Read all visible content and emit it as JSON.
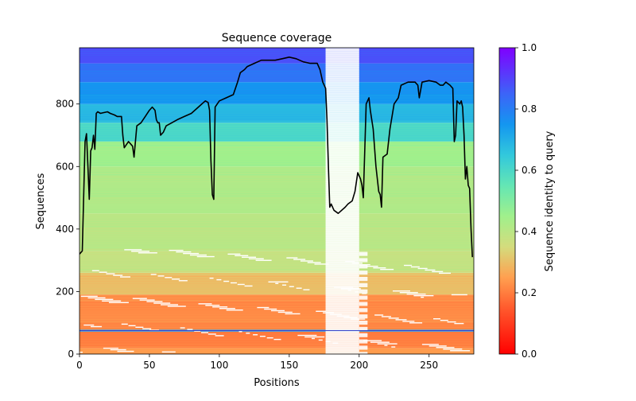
{
  "chart_data": {
    "type": "heatmap",
    "title": "Sequence coverage",
    "xlabel": "Positions",
    "ylabel": "Sequences",
    "xlim": [
      0,
      282
    ],
    "ylim": [
      0,
      980
    ],
    "xticks": [
      0,
      50,
      100,
      150,
      200,
      250
    ],
    "yticks": [
      0,
      200,
      400,
      600,
      800
    ],
    "colorbar": {
      "label": "Sequence identity to query",
      "range": [
        0,
        1
      ],
      "ticks": [
        "0.0",
        "0.2",
        "0.4",
        "0.6",
        "0.8",
        "1.0"
      ],
      "colormap": "rainbow_r"
    },
    "coverage_line": {
      "name": "coverage",
      "color": "#000000",
      "x": [
        0,
        2,
        4,
        5,
        6,
        7,
        8,
        9,
        10,
        11,
        12,
        13,
        15,
        20,
        22,
        25,
        27,
        30,
        31,
        32,
        35,
        37,
        38,
        39,
        41,
        44,
        47,
        50,
        52,
        54,
        55,
        56,
        57,
        58,
        60,
        62,
        66,
        70,
        75,
        80,
        85,
        90,
        92,
        93,
        94,
        95,
        96,
        97,
        100,
        105,
        110,
        113,
        115,
        118,
        120,
        125,
        130,
        135,
        140,
        145,
        150,
        155,
        160,
        165,
        170,
        172,
        174,
        175,
        176,
        177,
        178,
        179,
        180,
        182,
        185,
        190,
        192,
        195,
        197,
        199,
        201,
        202,
        203,
        205,
        207,
        208,
        210,
        212,
        214,
        215,
        216,
        217,
        220,
        222,
        225,
        228,
        230,
        235,
        240,
        242,
        243,
        245,
        250,
        255,
        258,
        260,
        262,
        265,
        267,
        268,
        269,
        270,
        272,
        273,
        274,
        275,
        276,
        277,
        278,
        279,
        280,
        281
      ],
      "y": [
        320,
        330,
        680,
        705,
        600,
        495,
        650,
        660,
        700,
        655,
        770,
        775,
        770,
        775,
        770,
        765,
        760,
        760,
        700,
        660,
        680,
        670,
        665,
        630,
        730,
        740,
        760,
        780,
        790,
        780,
        750,
        740,
        740,
        700,
        710,
        730,
        740,
        750,
        760,
        770,
        790,
        810,
        805,
        780,
        620,
        510,
        495,
        790,
        810,
        820,
        830,
        870,
        900,
        910,
        920,
        930,
        940,
        940,
        940,
        945,
        950,
        945,
        935,
        930,
        930,
        910,
        870,
        860,
        850,
        750,
        600,
        470,
        480,
        460,
        450,
        470,
        480,
        490,
        520,
        580,
        560,
        540,
        500,
        800,
        820,
        780,
        720,
        600,
        520,
        510,
        470,
        630,
        640,
        720,
        800,
        820,
        860,
        870,
        870,
        860,
        820,
        870,
        875,
        870,
        860,
        860,
        870,
        860,
        850,
        680,
        700,
        810,
        800,
        810,
        790,
        700,
        560,
        600,
        540,
        530,
        400,
        310
      ]
    },
    "identity_bands": [
      {
        "y": [
          0,
          20
        ],
        "identity": 0.25
      },
      {
        "y": [
          20,
          72
        ],
        "identity": 0.2
      },
      {
        "y": [
          72,
          78
        ],
        "identity": 0.75
      },
      {
        "y": [
          78,
          190
        ],
        "identity": 0.22
      },
      {
        "y": [
          190,
          260
        ],
        "identity": 0.3
      },
      {
        "y": [
          260,
          330
        ],
        "identity": 0.38
      },
      {
        "y": [
          330,
          450
        ],
        "identity": 0.4
      },
      {
        "y": [
          450,
          600
        ],
        "identity": 0.42
      },
      {
        "y": [
          600,
          680
        ],
        "identity": 0.45
      },
      {
        "y": [
          680,
          740
        ],
        "identity": 0.6
      },
      {
        "y": [
          740,
          800
        ],
        "identity": 0.68
      },
      {
        "y": [
          800,
          870
        ],
        "identity": 0.75
      },
      {
        "y": [
          870,
          930
        ],
        "identity": 0.82
      },
      {
        "y": [
          930,
          980
        ],
        "identity": 0.88
      }
    ]
  }
}
